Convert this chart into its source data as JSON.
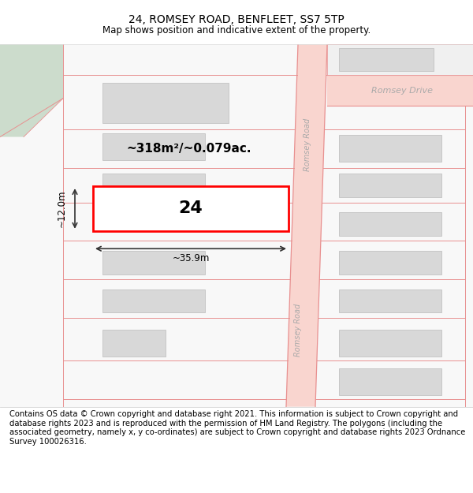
{
  "title": "24, ROMSEY ROAD, BENFLEET, SS7 5TP",
  "subtitle": "Map shows position and indicative extent of the property.",
  "footer": "Contains OS data © Crown copyright and database right 2021. This information is subject to Crown copyright and database rights 2023 and is reproduced with the permission of HM Land Registry. The polygons (including the associated geometry, namely x, y co-ordinates) are subject to Crown copyright and database rights 2023 Ordnance Survey 100026316.",
  "area_label": "~318m²/~0.079ac.",
  "width_label": "~35.9m",
  "height_label": "~12.0m",
  "number_label": "24",
  "bg_color": "#ffffff",
  "map_bg": "#f5f5f5",
  "road_color": "#f9d5cf",
  "road_outline": "#e89090",
  "building_fill": "#d8d8d8",
  "building_edge": "#bbbbbb",
  "highlight_fill": "#ffffff",
  "highlight_edge": "#ff0000",
  "street_label_color": "#aaaaaa",
  "dim_line_color": "#333333",
  "green_area": "#ccdccc",
  "title_fontsize": 10,
  "subtitle_fontsize": 8.5,
  "footer_fontsize": 7.2
}
